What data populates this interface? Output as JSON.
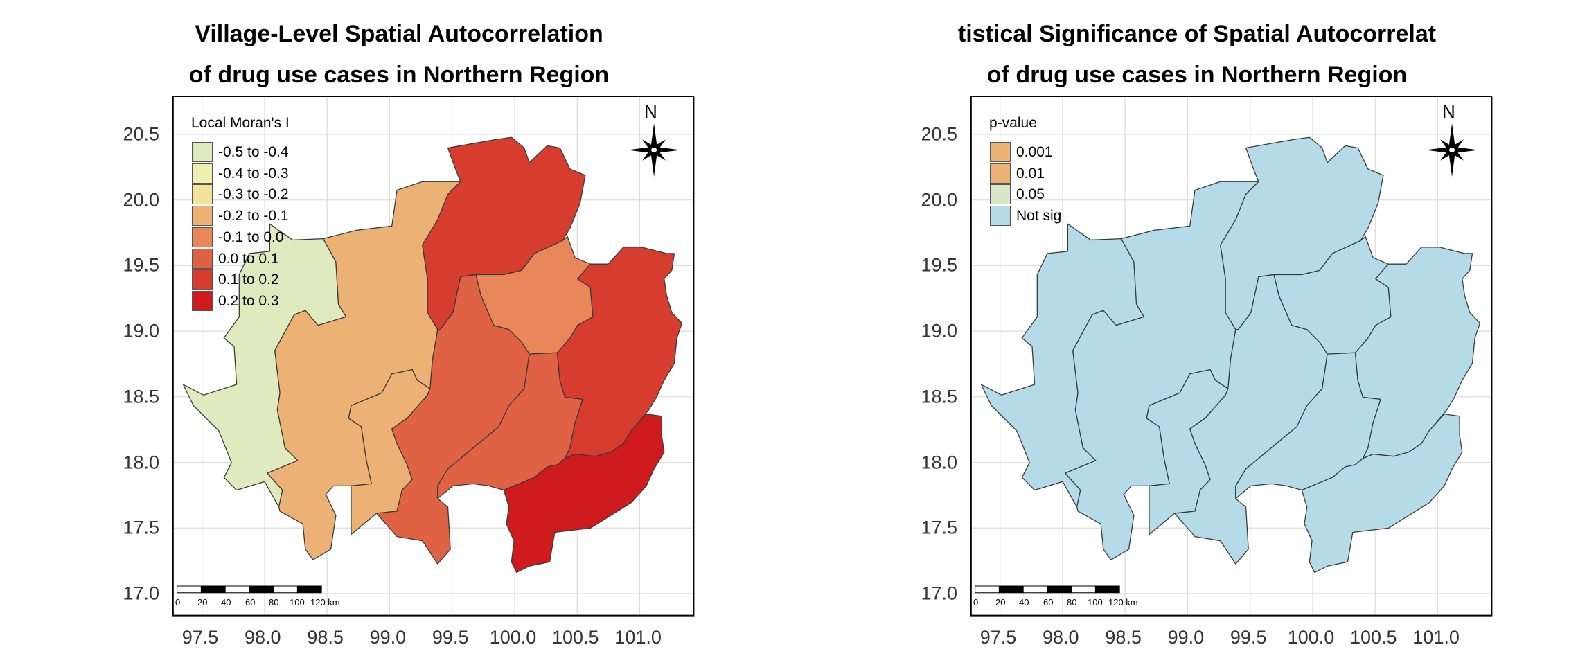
{
  "panels": [
    {
      "title_line1": "Village-Level Spatial Autocorrelation",
      "title_line2": "of drug use cases in Northern Region",
      "legend_title": "Local Moran's I",
      "legend": [
        {
          "label": "-0.5 to -0.4",
          "color": "#dfebbe"
        },
        {
          "label": "-0.4 to -0.3",
          "color": "#eeefb0"
        },
        {
          "label": "-0.3 to -0.2",
          "color": "#f3e29c"
        },
        {
          "label": "-0.2 to -0.1",
          "color": "#ecb275"
        },
        {
          "label": "-0.1 to 0.0",
          "color": "#e8885a"
        },
        {
          "label": "0.0 to 0.1",
          "color": "#e06245"
        },
        {
          "label": "0.1 to 0.2",
          "color": "#d73d2f"
        },
        {
          "label": "0.2 to 0.3",
          "color": "#cf1b1d"
        }
      ],
      "region_classes": [
        0,
        3,
        3,
        6,
        4,
        5,
        5,
        6,
        7
      ]
    },
    {
      "title_line1": "tistical Significance of Spatial Autocorrelat",
      "title_line2": "of drug use cases in Northern Region",
      "legend_title": "p-value",
      "legend": [
        {
          "label": "0.001",
          "color": "#ecb275"
        },
        {
          "label": "0.01",
          "color": "#ecb275"
        },
        {
          "label": "0.05",
          "color": "#d9e8c4"
        },
        {
          "label": "Not sig",
          "color": "#b4dbe7"
        }
      ],
      "region_classes": [
        3,
        3,
        3,
        3,
        3,
        3,
        3,
        3,
        3
      ]
    }
  ],
  "axes": {
    "x_ticks": [
      "97.5",
      "98.0",
      "98.5",
      "99.0",
      "99.5",
      "100.0",
      "100.5",
      "101.0"
    ],
    "y_ticks": [
      "20.5",
      "20.0",
      "19.5",
      "19.0",
      "18.5",
      "18.0",
      "17.5",
      "17.0"
    ]
  },
  "north_arrow": {
    "label": "N"
  },
  "scale_bar": {
    "labels": [
      "0",
      "20",
      "40",
      "60",
      "80",
      "100",
      "120 km"
    ]
  }
}
